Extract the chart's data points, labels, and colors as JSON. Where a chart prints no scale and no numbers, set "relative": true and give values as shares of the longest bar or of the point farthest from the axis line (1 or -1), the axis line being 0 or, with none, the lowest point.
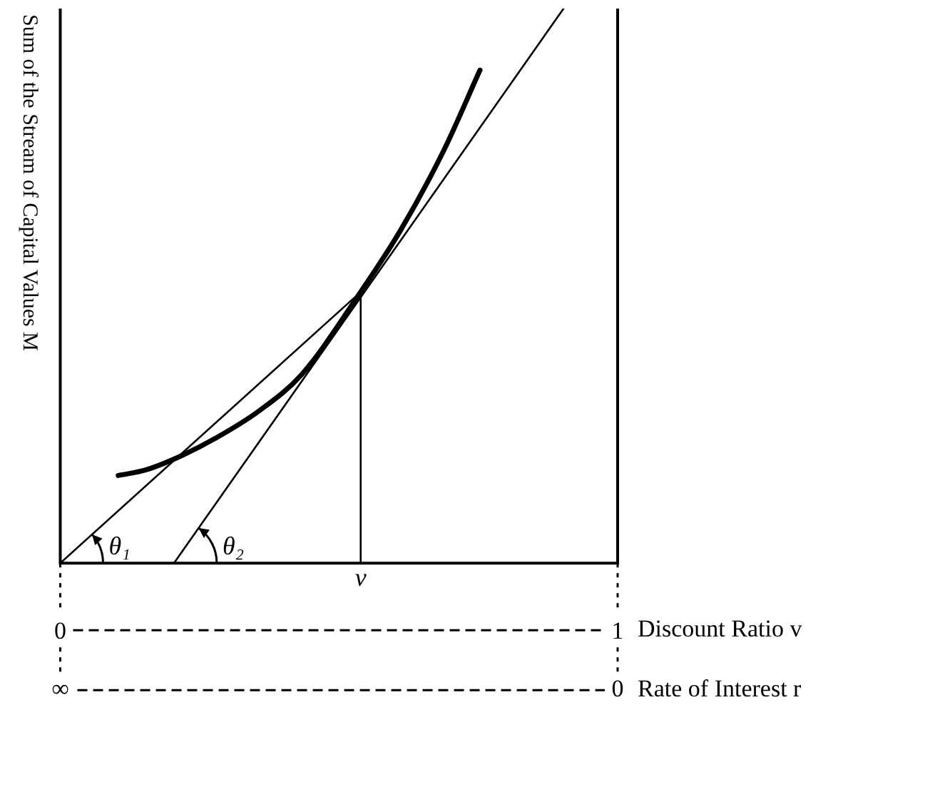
{
  "chart_data": {
    "type": "line",
    "relative": true,
    "ylabel": "Sum of the Stream of Capital Values M",
    "xlabel": "Discount Ratio v",
    "xlim": [
      0,
      1
    ],
    "xticks": [
      0,
      1
    ],
    "legend": false,
    "marker": "none",
    "line_style": "solid",
    "annotations": [
      "θ₁",
      "θ₂",
      {
        "text": "v",
        "x": 0.539,
        "y": 0
      },
      "∞",
      "0",
      "Rate of Interest r"
    ],
    "series": [
      {
        "color": "#000000",
        "x": [
          0.104,
          0.153,
          0.216,
          0.28,
          0.356,
          0.433,
          0.539,
          0.611,
          0.687,
          0.753
        ],
        "values": [
          0.158,
          0.168,
          0.193,
          0.226,
          0.274,
          0.34,
          0.489,
          0.601,
          0.742,
          0.889
        ]
      },
      {
        "color": "#000000",
        "x": [
          0,
          0.539
        ],
        "values": [
          0,
          0.489
        ]
      },
      {
        "color": "#000000",
        "x": [
          0.204,
          0.903
        ],
        "values": [
          0,
          1
        ]
      },
      {
        "color": "#000000",
        "x": [
          0.539,
          0.539
        ],
        "values": [
          0,
          0.489
        ]
      }
    ]
  }
}
